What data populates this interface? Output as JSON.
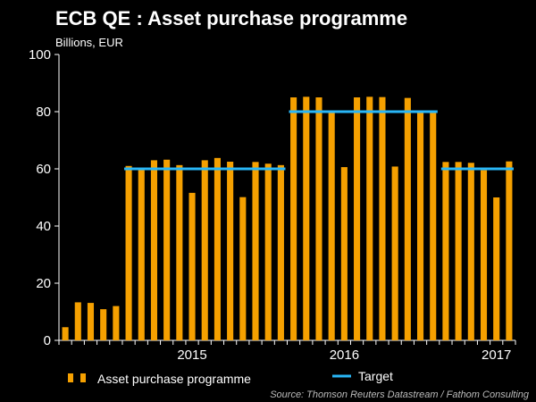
{
  "chart_data": {
    "type": "bar",
    "title": "ECB QE : Asset purchase programme",
    "subtitle": "Billions, EUR",
    "ylabel": "",
    "xlabel": "",
    "ylim": [
      0,
      100
    ],
    "yticks": [
      0,
      20,
      40,
      60,
      80,
      100
    ],
    "x_year_labels": [
      {
        "label": "2015",
        "index": 10.5
      },
      {
        "label": "2016",
        "index": 22.5
      },
      {
        "label": "2017",
        "index": 34.5
      }
    ],
    "series": [
      {
        "name": "Asset purchase programme",
        "type": "bar",
        "color": "#F5A000",
        "values": [
          4.6,
          13.3,
          13.1,
          10.9,
          12.0,
          61.0,
          60.4,
          63.0,
          63.2,
          61.3,
          51.6,
          63.0,
          63.8,
          62.5,
          50.1,
          62.4,
          61.8,
          61.3,
          85.0,
          85.2,
          85.0,
          80.0,
          60.6,
          85.0,
          85.2,
          85.1,
          60.8,
          84.8,
          80.0,
          80.0,
          62.4,
          62.4,
          62.1,
          59.5,
          50.0,
          62.6
        ]
      },
      {
        "name": "Target",
        "type": "step-line",
        "color": "#29B6F6",
        "segments": [
          {
            "start_index": 5,
            "end_index": 17,
            "value": 60
          },
          {
            "start_index": 18,
            "end_index": 29,
            "value": 80
          },
          {
            "start_index": 30,
            "end_index": 35,
            "value": 60
          }
        ]
      }
    ],
    "legend": {
      "position": "bottom",
      "entries": [
        "Asset purchase programme",
        "Target"
      ]
    },
    "source": "Source: Thomson Reuters Datastream / Fathom Consulting"
  }
}
